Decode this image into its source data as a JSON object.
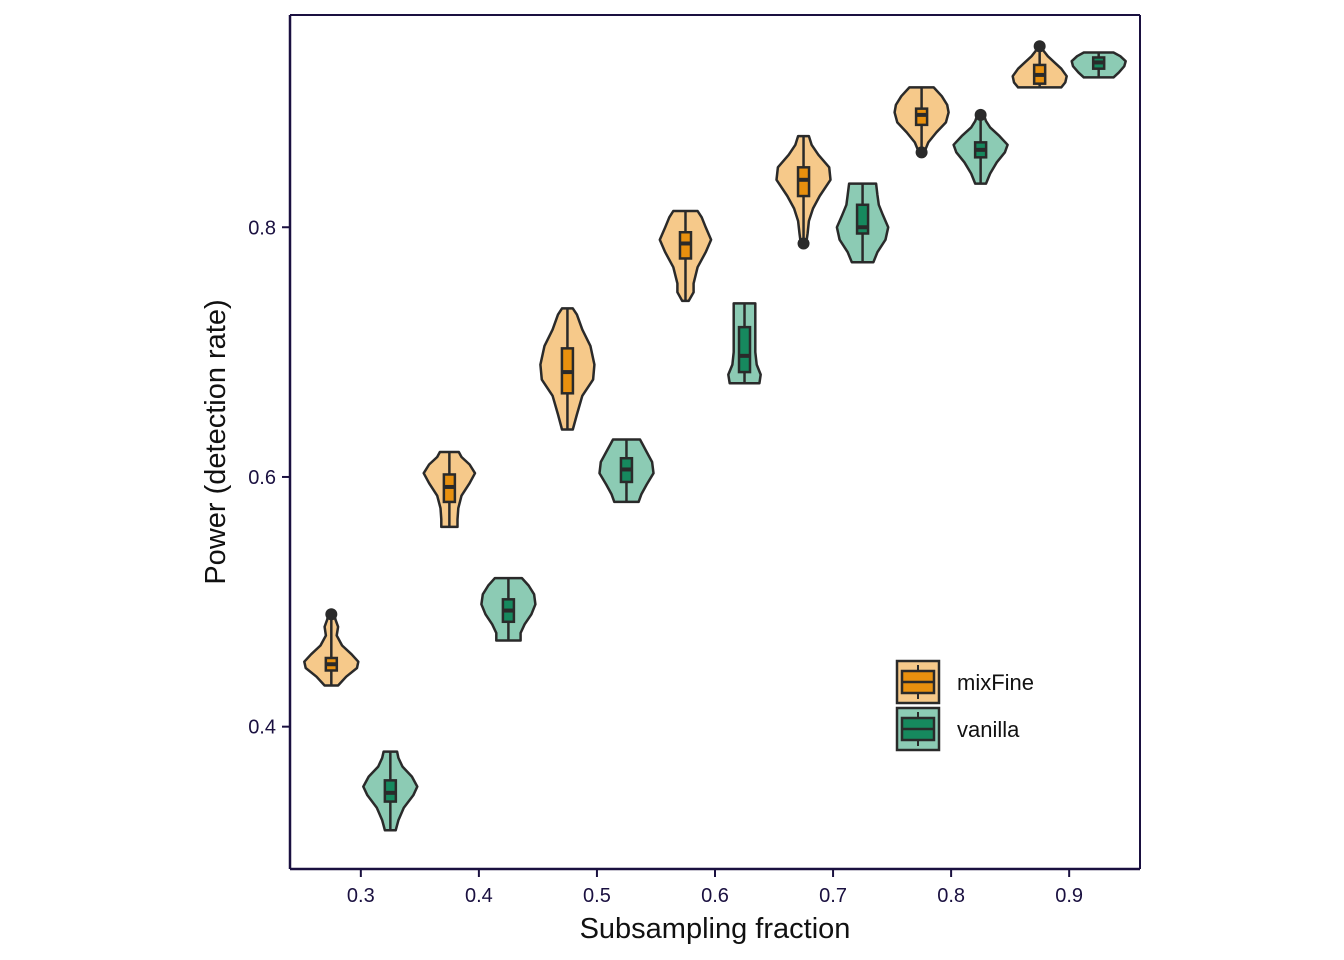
{
  "chart_data": {
    "type": "violin",
    "xlabel": "Subsampling fraction",
    "ylabel": "Power (detection rate)",
    "xlim": [
      0.24,
      0.96
    ],
    "ylim": [
      0.286,
      0.97
    ],
    "x_ticks": [
      0.3,
      0.4,
      0.5,
      0.6,
      0.7,
      0.8,
      0.9
    ],
    "x_tick_labels": [
      "0.3",
      "0.4",
      "0.5",
      "0.6",
      "0.7",
      "0.8",
      "0.9"
    ],
    "y_ticks": [
      0.4,
      0.6,
      0.8
    ],
    "y_tick_labels": [
      "0.4",
      "0.6",
      "0.8"
    ],
    "grid": false,
    "legend_position": "bottom-right",
    "colors": {
      "mixFine_fill": "#f6c98a",
      "mixFine_box": "#e8900e",
      "vanilla_fill": "#8ccbb4",
      "vanilla_box": "#16895e",
      "outline": "#2a2a2a",
      "frame": "#1a1040"
    },
    "series": [
      {
        "name": "mixFine",
        "x": [
          0.275,
          0.375,
          0.475,
          0.575,
          0.675,
          0.775,
          0.875
        ],
        "min": [
          0.433,
          0.56,
          0.638,
          0.741,
          0.787,
          0.86,
          0.912
        ],
        "q1": [
          0.445,
          0.58,
          0.667,
          0.775,
          0.825,
          0.882,
          0.915
        ],
        "median": [
          0.45,
          0.592,
          0.684,
          0.787,
          0.838,
          0.89,
          0.922
        ],
        "q3": [
          0.455,
          0.602,
          0.703,
          0.796,
          0.848,
          0.895,
          0.93
        ],
        "max": [
          0.49,
          0.62,
          0.735,
          0.813,
          0.873,
          0.912,
          0.945
        ],
        "outliers": [
          [
            0.49
          ],
          [],
          [],
          [],
          [
            0.787
          ],
          [
            0.86
          ],
          [
            0.945
          ]
        ]
      },
      {
        "name": "vanilla",
        "x": [
          0.325,
          0.425,
          0.525,
          0.625,
          0.725,
          0.825,
          0.925
        ],
        "min": [
          0.317,
          0.469,
          0.58,
          0.675,
          0.772,
          0.835,
          0.92
        ],
        "q1": [
          0.34,
          0.484,
          0.596,
          0.684,
          0.795,
          0.856,
          0.927
        ],
        "median": [
          0.347,
          0.493,
          0.606,
          0.697,
          0.8,
          0.862,
          0.932
        ],
        "q3": [
          0.357,
          0.502,
          0.615,
          0.72,
          0.818,
          0.868,
          0.936
        ],
        "max": [
          0.38,
          0.519,
          0.63,
          0.739,
          0.835,
          0.89,
          0.94
        ],
        "outliers": [
          [],
          [],
          [],
          [],
          [],
          [
            0.89
          ],
          []
        ]
      }
    ],
    "violin_shapes": [
      [
        [
          0.433,
          0.25
        ],
        [
          0.44,
          0.55
        ],
        [
          0.447,
          0.95
        ],
        [
          0.452,
          1.0
        ],
        [
          0.458,
          0.75
        ],
        [
          0.465,
          0.4
        ],
        [
          0.473,
          0.2
        ],
        [
          0.48,
          0.25
        ],
        [
          0.486,
          0.15
        ],
        [
          0.49,
          0.12
        ]
      ],
      [
        [
          0.56,
          0.3
        ],
        [
          0.566,
          0.3
        ],
        [
          0.575,
          0.33
        ],
        [
          0.585,
          0.45
        ],
        [
          0.595,
          0.75
        ],
        [
          0.603,
          0.95
        ],
        [
          0.61,
          0.75
        ],
        [
          0.616,
          0.45
        ],
        [
          0.62,
          0.35
        ]
      ],
      [
        [
          0.638,
          0.2
        ],
        [
          0.65,
          0.35
        ],
        [
          0.665,
          0.55
        ],
        [
          0.678,
          0.95
        ],
        [
          0.69,
          1.0
        ],
        [
          0.705,
          0.85
        ],
        [
          0.718,
          0.55
        ],
        [
          0.73,
          0.35
        ],
        [
          0.735,
          0.2
        ]
      ],
      [
        [
          0.741,
          0.12
        ],
        [
          0.748,
          0.3
        ],
        [
          0.755,
          0.3
        ],
        [
          0.768,
          0.45
        ],
        [
          0.78,
          0.75
        ],
        [
          0.79,
          0.95
        ],
        [
          0.8,
          0.75
        ],
        [
          0.808,
          0.6
        ],
        [
          0.813,
          0.45
        ]
      ],
      [
        [
          0.787,
          0.1
        ],
        [
          0.795,
          0.15
        ],
        [
          0.805,
          0.2
        ],
        [
          0.815,
          0.35
        ],
        [
          0.825,
          0.6
        ],
        [
          0.838,
          1.0
        ],
        [
          0.848,
          0.95
        ],
        [
          0.858,
          0.55
        ],
        [
          0.866,
          0.3
        ],
        [
          0.873,
          0.2
        ]
      ],
      [
        [
          0.86,
          0.1
        ],
        [
          0.868,
          0.25
        ],
        [
          0.876,
          0.55
        ],
        [
          0.884,
          0.9
        ],
        [
          0.892,
          1.0
        ],
        [
          0.898,
          0.95
        ],
        [
          0.905,
          0.75
        ],
        [
          0.912,
          0.45
        ]
      ],
      [
        [
          0.912,
          0.8
        ],
        [
          0.916,
          0.95
        ],
        [
          0.921,
          1.0
        ],
        [
          0.927,
          0.8
        ],
        [
          0.932,
          0.55
        ],
        [
          0.937,
          0.3
        ],
        [
          0.942,
          0.12
        ],
        [
          0.945,
          0.08
        ]
      ]
    ],
    "violin_shapes_vanilla": [
      [
        [
          0.317,
          0.2
        ],
        [
          0.325,
          0.3
        ],
        [
          0.335,
          0.5
        ],
        [
          0.345,
          0.85
        ],
        [
          0.352,
          1.0
        ],
        [
          0.36,
          0.8
        ],
        [
          0.368,
          0.45
        ],
        [
          0.375,
          0.3
        ],
        [
          0.38,
          0.25
        ]
      ],
      [
        [
          0.469,
          0.45
        ],
        [
          0.475,
          0.45
        ],
        [
          0.482,
          0.6
        ],
        [
          0.49,
          0.85
        ],
        [
          0.498,
          1.0
        ],
        [
          0.506,
          0.95
        ],
        [
          0.513,
          0.75
        ],
        [
          0.519,
          0.5
        ]
      ],
      [
        [
          0.58,
          0.45
        ],
        [
          0.586,
          0.55
        ],
        [
          0.594,
          0.75
        ],
        [
          0.603,
          1.0
        ],
        [
          0.612,
          0.95
        ],
        [
          0.62,
          0.75
        ],
        [
          0.626,
          0.6
        ],
        [
          0.63,
          0.5
        ]
      ],
      [
        [
          0.675,
          0.55
        ],
        [
          0.682,
          0.6
        ],
        [
          0.69,
          0.45
        ],
        [
          0.7,
          0.4
        ],
        [
          0.712,
          0.4
        ],
        [
          0.725,
          0.4
        ],
        [
          0.733,
          0.4
        ],
        [
          0.739,
          0.4
        ]
      ],
      [
        [
          0.772,
          0.4
        ],
        [
          0.78,
          0.55
        ],
        [
          0.79,
          0.85
        ],
        [
          0.8,
          0.95
        ],
        [
          0.81,
          0.75
        ],
        [
          0.818,
          0.6
        ],
        [
          0.826,
          0.55
        ],
        [
          0.835,
          0.5
        ]
      ],
      [
        [
          0.835,
          0.2
        ],
        [
          0.843,
          0.35
        ],
        [
          0.852,
          0.6
        ],
        [
          0.86,
          0.9
        ],
        [
          0.866,
          1.0
        ],
        [
          0.873,
          0.7
        ],
        [
          0.88,
          0.35
        ],
        [
          0.885,
          0.2
        ],
        [
          0.89,
          0.12
        ]
      ],
      [
        [
          0.92,
          0.55
        ],
        [
          0.924,
          0.75
        ],
        [
          0.929,
          0.95
        ],
        [
          0.933,
          1.0
        ],
        [
          0.937,
          0.8
        ],
        [
          0.94,
          0.55
        ]
      ]
    ],
    "legend": [
      {
        "label": "mixFine",
        "series": 0
      },
      {
        "label": "vanilla",
        "series": 1
      }
    ]
  }
}
